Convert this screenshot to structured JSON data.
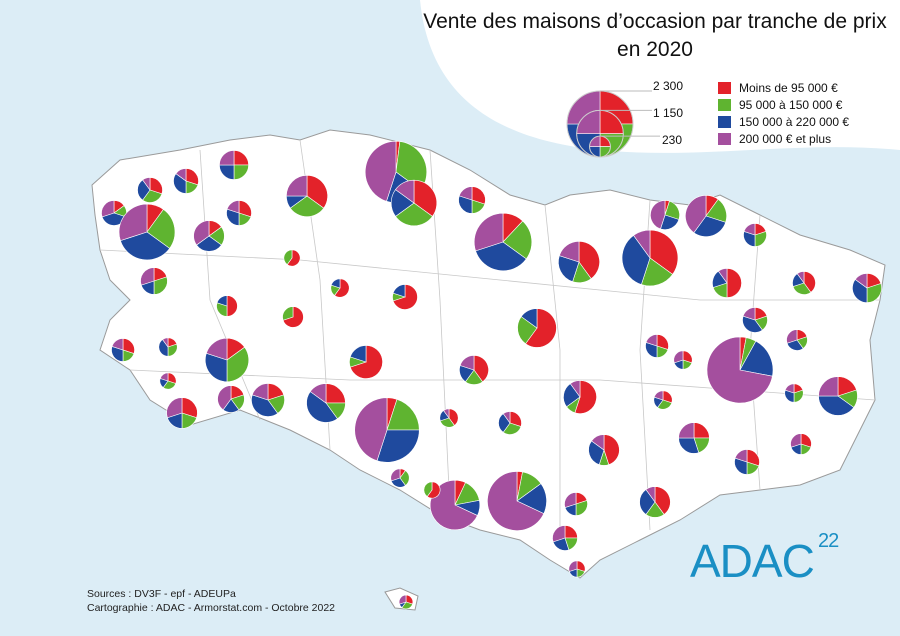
{
  "title_line1": "Vente des maisons d’occasion par tranche de prix",
  "title_line2": "en 2020",
  "legend": {
    "categories": [
      {
        "label": "Moins de 95 000 €",
        "color": "#e3222a"
      },
      {
        "label": "95 000 à 150 000 €",
        "color": "#5fb430"
      },
      {
        "label": "150 000 à 220 000 €",
        "color": "#1f4a9e"
      },
      {
        "label": "200 000 € et plus",
        "color": "#a44f9e"
      }
    ],
    "size_values": [
      "2 300",
      "1 150",
      "230"
    ]
  },
  "sources": "Sources : DV3F - epf - ADEUPa",
  "cartography": "Cartographie : ADAC - Armorstat.com - Octobre 2022",
  "logo": {
    "text": "ADAC",
    "number": "22"
  },
  "chart_data": {
    "type": "pie-map",
    "series_order": [
      "Moins de 95 000 €",
      "95 000 à 150 000 €",
      "150 000 à 220 000 €",
      "200 000 € et plus"
    ],
    "pies": [
      {
        "total": 450,
        "shares": [
          0.25,
          0.25,
          0.25,
          0.25
        ]
      },
      {
        "total": 330,
        "shares": [
          0.3,
          0.3,
          0.3,
          0.1
        ]
      },
      {
        "total": 330,
        "shares": [
          0.3,
          0.2,
          0.35,
          0.15
        ]
      },
      {
        "total": 330,
        "shares": [
          0.15,
          0.15,
          0.4,
          0.3
        ]
      },
      {
        "total": 1650,
        "shares": [
          0.1,
          0.25,
          0.35,
          0.3
        ]
      },
      {
        "total": 500,
        "shares": [
          0.15,
          0.2,
          0.3,
          0.35
        ]
      },
      {
        "total": 330,
        "shares": [
          0.3,
          0.2,
          0.3,
          0.2
        ]
      },
      {
        "total": 900,
        "shares": [
          0.35,
          0.3,
          0.1,
          0.25
        ]
      },
      {
        "total": 2000,
        "shares": [
          0.02,
          0.33,
          0.2,
          0.45
        ]
      },
      {
        "total": 1100,
        "shares": [
          0.35,
          0.3,
          0.2,
          0.15
        ]
      },
      {
        "total": 380,
        "shares": [
          0.3,
          0.2,
          0.3,
          0.2
        ]
      },
      {
        "total": 1750,
        "shares": [
          0.12,
          0.23,
          0.35,
          0.3
        ]
      },
      {
        "total": 900,
        "shares": [
          0.4,
          0.15,
          0.25,
          0.2
        ]
      },
      {
        "total": 1650,
        "shares": [
          0.35,
          0.2,
          0.35,
          0.1
        ]
      },
      {
        "total": 450,
        "shares": [
          0.05,
          0.25,
          0.25,
          0.45
        ]
      },
      {
        "total": 900,
        "shares": [
          0.1,
          0.2,
          0.3,
          0.4
        ]
      },
      {
        "total": 280,
        "shares": [
          0.2,
          0.3,
          0.3,
          0.2
        ]
      },
      {
        "total": 450,
        "shares": [
          0.5,
          0.2,
          0.2,
          0.1
        ]
      },
      {
        "total": 280,
        "shares": [
          0.4,
          0.3,
          0.2,
          0.1
        ]
      },
      {
        "total": 450,
        "shares": [
          0.2,
          0.3,
          0.35,
          0.15
        ]
      },
      {
        "total": 140,
        "shares": [
          0.6,
          0.4,
          0,
          0
        ]
      },
      {
        "total": 180,
        "shares": [
          0.6,
          0.2,
          0.2,
          0
        ]
      },
      {
        "total": 330,
        "shares": [
          0.7,
          0.1,
          0.2,
          0
        ]
      },
      {
        "total": 230,
        "shares": [
          0.7,
          0.3,
          0,
          0
        ]
      },
      {
        "total": 230,
        "shares": [
          0.5,
          0.3,
          0.2,
          0
        ]
      },
      {
        "total": 380,
        "shares": [
          0.2,
          0.3,
          0.2,
          0.3
        ]
      },
      {
        "total": 800,
        "shares": [
          0.6,
          0.25,
          0.15,
          0
        ]
      },
      {
        "total": 580,
        "shares": [
          0.7,
          0.1,
          0.2,
          0
        ]
      },
      {
        "total": 280,
        "shares": [
          0.3,
          0.2,
          0.3,
          0.2
        ]
      },
      {
        "total": 180,
        "shares": [
          0.2,
          0.3,
          0.4,
          0.1
        ]
      },
      {
        "total": 1000,
        "shares": [
          0.15,
          0.35,
          0.3,
          0.2
        ]
      },
      {
        "total": 280,
        "shares": [
          0.3,
          0.2,
          0.3,
          0.2
        ]
      },
      {
        "total": 330,
        "shares": [
          0.2,
          0.2,
          0.4,
          0.2
        ]
      },
      {
        "total": 230,
        "shares": [
          0.2,
          0.2,
          0.3,
          0.3
        ]
      },
      {
        "total": 180,
        "shares": [
          0.3,
          0.2,
          0.2,
          0.3
        ]
      },
      {
        "total": 2300,
        "shares": [
          0.03,
          0.05,
          0.2,
          0.72
        ]
      },
      {
        "total": 450,
        "shares": [
          0.4,
          0.2,
          0.2,
          0.2
        ]
      },
      {
        "total": 580,
        "shares": [
          0.55,
          0.1,
          0.25,
          0.1
        ]
      },
      {
        "total": 800,
        "shares": [
          0.25,
          0.15,
          0.45,
          0.15
        ]
      },
      {
        "total": 580,
        "shares": [
          0.2,
          0.2,
          0.4,
          0.2
        ]
      },
      {
        "total": 380,
        "shares": [
          0.2,
          0.2,
          0.2,
          0.4
        ]
      },
      {
        "total": 140,
        "shares": [
          0.3,
          0.3,
          0.2,
          0.2
        ]
      },
      {
        "total": 500,
        "shares": [
          0.3,
          0.2,
          0.2,
          0.3
        ]
      },
      {
        "total": 2200,
        "shares": [
          0.05,
          0.2,
          0.3,
          0.45
        ]
      },
      {
        "total": 180,
        "shares": [
          0.4,
          0.3,
          0.2,
          0.1
        ]
      },
      {
        "total": 280,
        "shares": [
          0.3,
          0.3,
          0.3,
          0.1
        ]
      },
      {
        "total": 180,
        "shares": [
          0.3,
          0.3,
          0.2,
          0.2
        ]
      },
      {
        "total": 180,
        "shares": [
          0.2,
          0.3,
          0.3,
          0.2
        ]
      },
      {
        "total": 800,
        "shares": [
          0.2,
          0.15,
          0.4,
          0.25
        ]
      },
      {
        "total": 500,
        "shares": [
          0.45,
          0.1,
          0.3,
          0.15
        ]
      },
      {
        "total": 500,
        "shares": [
          0.25,
          0.2,
          0.3,
          0.25
        ]
      },
      {
        "total": 230,
        "shares": [
          0.3,
          0.2,
          0.2,
          0.3
        ]
      },
      {
        "total": 330,
        "shares": [
          0.3,
          0.2,
          0.3,
          0.2
        ]
      },
      {
        "total": 180,
        "shares": [
          0.1,
          0.3,
          0.3,
          0.3
        ]
      },
      {
        "total": 1300,
        "shares": [
          0.07,
          0.15,
          0.1,
          0.68
        ]
      },
      {
        "total": 1850,
        "shares": [
          0.03,
          0.12,
          0.17,
          0.68
        ]
      },
      {
        "total": 140,
        "shares": [
          0.6,
          0.4,
          0,
          0
        ]
      },
      {
        "total": 280,
        "shares": [
          0.2,
          0.3,
          0.2,
          0.3
        ]
      },
      {
        "total": 500,
        "shares": [
          0.4,
          0.2,
          0.3,
          0.1
        ]
      },
      {
        "total": 330,
        "shares": [
          0.25,
          0.2,
          0.25,
          0.3
        ]
      },
      {
        "total": 140,
        "shares": [
          0.3,
          0.2,
          0.2,
          0.3
        ]
      },
      {
        "total": 100,
        "shares": [
          0.3,
          0.3,
          0.1,
          0.3
        ]
      }
    ]
  }
}
